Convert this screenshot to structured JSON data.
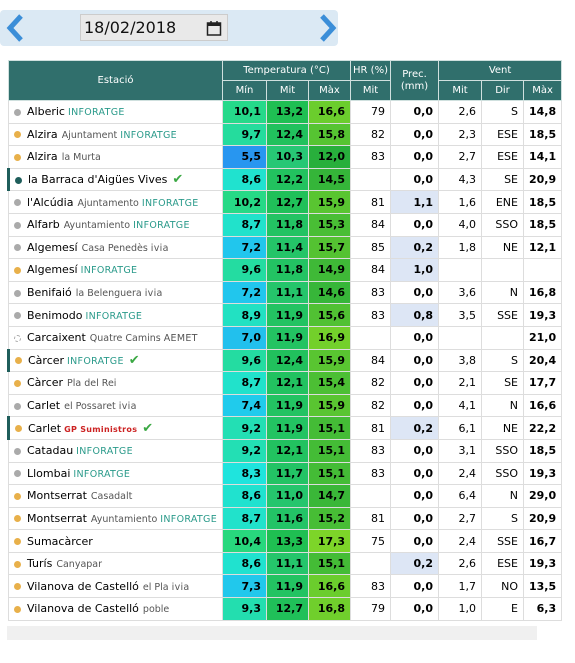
{
  "header": {
    "date": "18/02/2018"
  },
  "table": {
    "columns": [
      "Estació",
      "Temperatura (°C)",
      "HR (%)",
      "Prec. (mm)",
      "Vent"
    ],
    "subcolumns": [
      "Mín",
      "Mit",
      "Màx",
      "Mit",
      "Mit",
      "Mit",
      "Dir",
      "Màx"
    ],
    "rows": [
      {
        "name": "Alberic",
        "sub": null,
        "net": "INFORATGE",
        "check": false,
        "dot": "#aaaaaa",
        "cells": [
          "10,1",
          "13,2",
          "16,6",
          "79",
          "0,0",
          "2,6",
          "S",
          "14,8"
        ]
      },
      {
        "name": "Alzira",
        "sub": "Ajuntament",
        "net": "INFORATGE",
        "check": false,
        "dot": "#e8b04a",
        "cells": [
          "9,7",
          "12,4",
          "15,8",
          "82",
          "0,0",
          "2,3",
          "ESE",
          "18,5"
        ]
      },
      {
        "name": "Alzira",
        "sub": "la Murta",
        "net": null,
        "check": false,
        "dot": "#e8b04a",
        "cells": [
          "5,5",
          "10,3",
          "12,0",
          "83",
          "0,0",
          "2,7",
          "ESE",
          "14,1"
        ]
      },
      {
        "name": "la Barraca d'Aigües Vives",
        "sub": null,
        "net": null,
        "check": true,
        "dot": "#1f5e5b",
        "cells": [
          "8,6",
          "12,2",
          "14,5",
          null,
          "0,0",
          "4,3",
          "SE",
          "20,9"
        ]
      },
      {
        "name": "l'Alcúdia",
        "sub": "Ajuntamento",
        "net": "INFORATGE",
        "check": false,
        "dot": "#aaaaaa",
        "cells": [
          "10,2",
          "12,7",
          "15,9",
          "81",
          "1,1",
          "1,6",
          "ENE",
          "18,5"
        ]
      },
      {
        "name": "Alfarb",
        "sub": "Ayuntamiento",
        "net": "INFORATGE",
        "check": false,
        "dot": "#aaaaaa",
        "cells": [
          "8,7",
          "11,8",
          "15,3",
          "84",
          "0,0",
          "4,0",
          "SSO",
          "18,5"
        ]
      },
      {
        "name": "Algemesí",
        "sub": "Casa Penedès",
        "net": "ivia",
        "check": false,
        "dot": "#aaaaaa",
        "cells": [
          "7,2",
          "11,4",
          "15,7",
          "85",
          "0,2",
          "1,8",
          "NE",
          "12,1"
        ]
      },
      {
        "name": "Algemesí",
        "sub": null,
        "net": "INFORATGE",
        "check": false,
        "dot": "#e8b04a",
        "cells": [
          "9,6",
          "11,8",
          "14,9",
          "84",
          "1,0",
          null,
          null,
          null
        ]
      },
      {
        "name": "Benifaió",
        "sub": "la Belenguera",
        "net": "ivia",
        "check": false,
        "dot": "#aaaaaa",
        "cells": [
          "7,2",
          "11,1",
          "14,6",
          "83",
          "0,0",
          "3,6",
          "N",
          "16,8"
        ]
      },
      {
        "name": "Benimodo",
        "sub": null,
        "net": "INFORATGE",
        "check": false,
        "dot": "#aaaaaa",
        "cells": [
          "8,9",
          "11,9",
          "15,6",
          "83",
          "0,8",
          "3,5",
          "SSE",
          "19,3"
        ]
      },
      {
        "name": "Carcaixent",
        "sub": "Quatre Camins",
        "net": "AEMET",
        "check": false,
        "dot": "#ffffff",
        "cells": [
          "7,0",
          "11,9",
          "16,9",
          null,
          "0,0",
          null,
          null,
          "21,0"
        ]
      },
      {
        "name": "Càrcer",
        "sub": null,
        "net": "INFORATGE",
        "check": true,
        "dot": "#e8b04a",
        "cells": [
          "9,6",
          "12,4",
          "15,9",
          "84",
          "0,0",
          "3,8",
          "S",
          "20,4"
        ]
      },
      {
        "name": "Càrcer",
        "sub": "Pla del Rei",
        "net": null,
        "check": false,
        "dot": "#e8b04a",
        "cells": [
          "8,7",
          "12,1",
          "15,4",
          "82",
          "0,0",
          "2,1",
          "SE",
          "17,7"
        ]
      },
      {
        "name": "Carlet",
        "sub": "el Possaret",
        "net": "ivia",
        "check": false,
        "dot": "#aaaaaa",
        "cells": [
          "7,4",
          "11,9",
          "15,9",
          "82",
          "0,0",
          "4,1",
          "N",
          "16,6"
        ]
      },
      {
        "name": "Carlet",
        "sub": null,
        "net": "GP Suministros",
        "check": true,
        "dot": "#e8b04a",
        "cells": [
          "9,2",
          "11,9",
          "15,1",
          "81",
          "0,2",
          "6,1",
          "NE",
          "22,2"
        ]
      },
      {
        "name": "Catadau",
        "sub": null,
        "net": "INFORATGE",
        "check": false,
        "dot": "#aaaaaa",
        "cells": [
          "9,2",
          "12,1",
          "15,1",
          "83",
          "0,0",
          "3,1",
          "SSO",
          "18,5"
        ]
      },
      {
        "name": "Llombai",
        "sub": null,
        "net": "INFORATGE",
        "check": false,
        "dot": "#aaaaaa",
        "cells": [
          "8,3",
          "11,7",
          "15,1",
          "83",
          "0,0",
          "2,4",
          "SSO",
          "19,3"
        ]
      },
      {
        "name": "Montserrat",
        "sub": "Casadalt",
        "net": null,
        "check": false,
        "dot": "#e8b04a",
        "cells": [
          "8,6",
          "11,0",
          "14,7",
          null,
          "0,0",
          "6,4",
          "N",
          "29,0"
        ]
      },
      {
        "name": "Montserrat",
        "sub": "Ayuntamiento",
        "net": "INFORATGE",
        "check": false,
        "dot": "#e8b04a",
        "cells": [
          "8,7",
          "11,6",
          "15,2",
          "81",
          "0,0",
          "2,7",
          "S",
          "20,9"
        ]
      },
      {
        "name": "Sumacàrcer",
        "sub": null,
        "net": null,
        "check": false,
        "dot": "#e8b04a",
        "cells": [
          "10,4",
          "13,3",
          "17,3",
          "75",
          "0,0",
          "2,4",
          "SSE",
          "16,7"
        ]
      },
      {
        "name": "Turís",
        "sub": "Canyapar",
        "net": null,
        "check": false,
        "dot": "#e8b04a",
        "cells": [
          "8,6",
          "11,1",
          "15,1",
          null,
          "0,2",
          "2,6",
          "ESE",
          "19,3"
        ]
      },
      {
        "name": "Vilanova de Castelló",
        "sub": "el Pla",
        "net": "ivia",
        "check": false,
        "dot": "#e8b04a",
        "cells": [
          "7,3",
          "11,9",
          "16,6",
          "83",
          "0,0",
          "1,7",
          "NO",
          "13,5"
        ]
      },
      {
        "name": "Vilanova de Castelló",
        "sub": "poble",
        "net": null,
        "check": false,
        "dot": "#e8b04a",
        "cells": [
          "9,3",
          "12,7",
          "16,8",
          "79",
          "0,0",
          "1,0",
          "E",
          "6,3"
        ]
      }
    ]
  }
}
